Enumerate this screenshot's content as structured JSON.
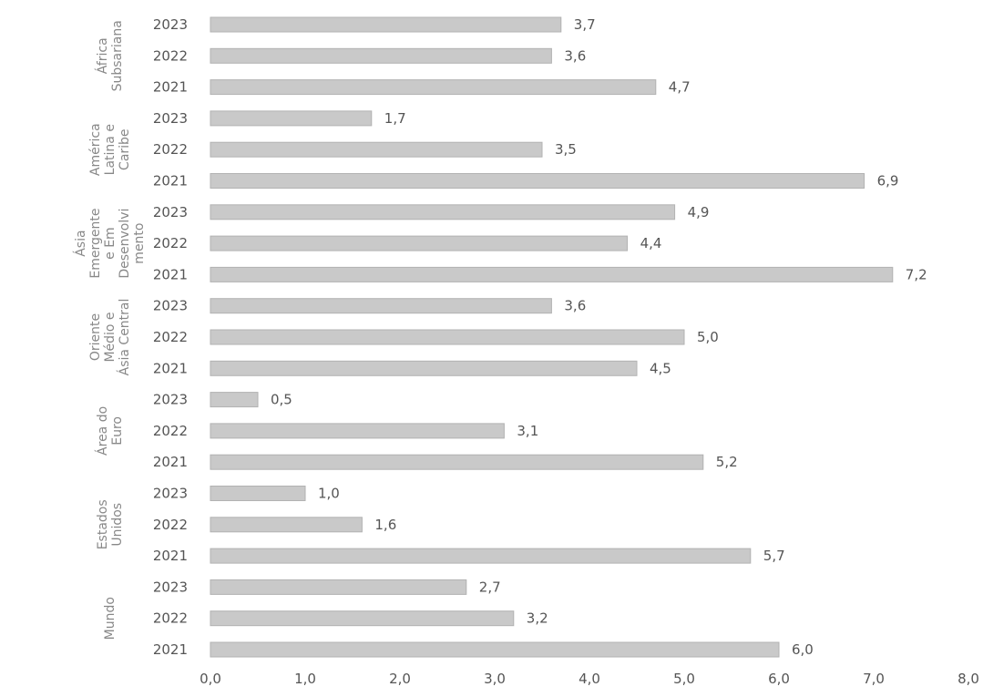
{
  "chart_data": {
    "type": "bar",
    "orientation": "horizontal",
    "title": "",
    "xlabel": "",
    "ylabel": "",
    "xlim": [
      0,
      8
    ],
    "grid": false,
    "legend": "none",
    "bar_color": "#c9c9c9",
    "x_ticks": [
      "0,0",
      "1,0",
      "2,0",
      "3,0",
      "4,0",
      "5,0",
      "6,0",
      "7,0",
      "8,0"
    ],
    "groups": [
      {
        "name": [
          "África",
          "Subsariana"
        ],
        "years": [
          "2023",
          "2022",
          "2021"
        ],
        "values": [
          3.7,
          3.6,
          4.7
        ],
        "labels": [
          "3,7",
          "3,6",
          "4,7"
        ]
      },
      {
        "name": [
          "América",
          "Latina e",
          "Caribe"
        ],
        "years": [
          "2023",
          "2022",
          "2021"
        ],
        "values": [
          1.7,
          3.5,
          6.9
        ],
        "labels": [
          "1,7",
          "3,5",
          "6,9"
        ]
      },
      {
        "name": [
          "Ásia",
          "Emergente",
          "e Em",
          "Desenvolvi",
          "mento"
        ],
        "years": [
          "2023",
          "2022",
          "2021"
        ],
        "values": [
          4.9,
          4.4,
          7.2
        ],
        "labels": [
          "4,9",
          "4,4",
          "7,2"
        ]
      },
      {
        "name": [
          "Oriente",
          "Médio e",
          "Ásia Central"
        ],
        "years": [
          "2023",
          "2022",
          "2021"
        ],
        "values": [
          3.6,
          5.0,
          4.5
        ],
        "labels": [
          "3,6",
          "5,0",
          "4,5"
        ]
      },
      {
        "name": [
          "Área do",
          "Euro"
        ],
        "years": [
          "2023",
          "2022",
          "2021"
        ],
        "values": [
          0.5,
          3.1,
          5.2
        ],
        "labels": [
          "0,5",
          "3,1",
          "5,2"
        ]
      },
      {
        "name": [
          "Estados",
          "Unidos"
        ],
        "years": [
          "2023",
          "2022",
          "2021"
        ],
        "values": [
          1.0,
          1.6,
          5.7
        ],
        "labels": [
          "1,0",
          "1,6",
          "5,7"
        ]
      },
      {
        "name": [
          "Mundo"
        ],
        "years": [
          "2023",
          "2022",
          "2021"
        ],
        "values": [
          2.7,
          3.2,
          6.0
        ],
        "labels": [
          "2,7",
          "3,2",
          "6,0"
        ]
      }
    ]
  }
}
